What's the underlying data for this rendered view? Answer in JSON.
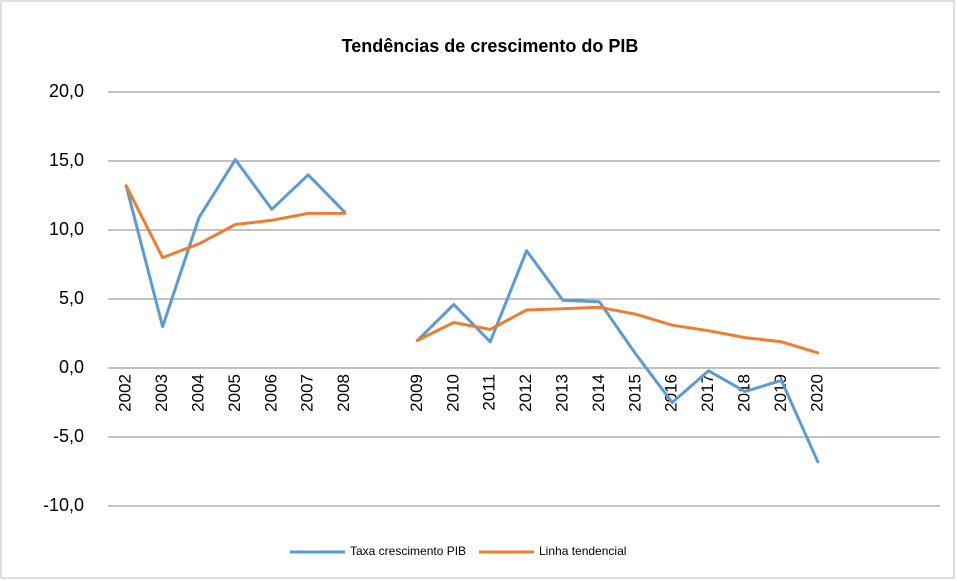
{
  "chart_data": {
    "type": "line",
    "title": "Tendências de crescimento do PIB",
    "categories": [
      "2002",
      "2003",
      "2004",
      "2005",
      "2006",
      "2007",
      "2008",
      null,
      "2009",
      "2010",
      "2011",
      "2012",
      "2013",
      "2014",
      "2015",
      "2016",
      "2017",
      "2018",
      "2019",
      "2020"
    ],
    "series": [
      {
        "name": "Taxa crescimento PIB",
        "color": "#5b9bd5",
        "values": [
          13.2,
          3.0,
          10.9,
          15.1,
          11.5,
          14.0,
          11.3,
          null,
          2.0,
          4.6,
          1.9,
          8.5,
          4.9,
          4.8,
          1.0,
          -2.5,
          -0.2,
          -1.7,
          -0.9,
          -6.8
        ]
      },
      {
        "name": "Linha tendencial",
        "color": "#ed7d31",
        "values": [
          13.2,
          8.0,
          9.0,
          10.4,
          10.7,
          11.2,
          11.2,
          null,
          2.0,
          3.3,
          2.8,
          4.2,
          4.3,
          4.4,
          3.9,
          3.1,
          2.7,
          2.2,
          1.9,
          1.1
        ]
      }
    ],
    "ylim": [
      -10,
      20
    ],
    "yticks": [
      {
        "value": -10,
        "label": "-10,0"
      },
      {
        "value": -5,
        "label": "-5,0"
      },
      {
        "value": 0,
        "label": "0,0"
      },
      {
        "value": 5,
        "label": "5,0"
      },
      {
        "value": 10,
        "label": "10,0"
      },
      {
        "value": 15,
        "label": "15,0"
      },
      {
        "value": 20,
        "label": "20,0"
      }
    ],
    "grid": true,
    "legend": "bottom"
  }
}
